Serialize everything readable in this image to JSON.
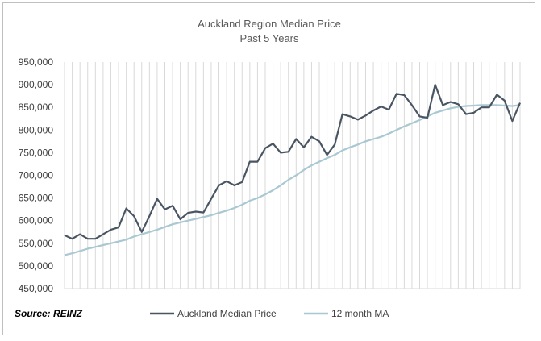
{
  "chart_data": {
    "type": "line",
    "title": "Auckland Region Median Price",
    "subtitle": "Past 5 Years",
    "source": "Source: REINZ",
    "ylim": [
      450000,
      950000
    ],
    "y_ticks": [
      "450,000",
      "500,000",
      "550,000",
      "600,000",
      "650,000",
      "700,000",
      "750,000",
      "800,000",
      "850,000",
      "900,000",
      "950,000"
    ],
    "grid": "vertical lines at each month",
    "legend_position": "bottom",
    "colors": {
      "median": "#4a5563",
      "ma": "#a9c8d2",
      "grid": "#d9d9d9"
    },
    "series": [
      {
        "name": "Auckland Median Price",
        "values": [
          568000,
          560000,
          570000,
          560000,
          560000,
          570000,
          580000,
          585000,
          627000,
          610000,
          575000,
          610000,
          648000,
          625000,
          633000,
          603000,
          617000,
          620000,
          618000,
          648000,
          678000,
          687000,
          678000,
          685000,
          730000,
          730000,
          760000,
          770000,
          750000,
          752000,
          780000,
          762000,
          785000,
          775000,
          745000,
          768000,
          835000,
          830000,
          823000,
          832000,
          843000,
          852000,
          845000,
          880000,
          877000,
          855000,
          830000,
          827000,
          900000,
          855000,
          862000,
          857000,
          835000,
          838000,
          850000,
          850000,
          878000,
          865000,
          820000,
          860000
        ]
      },
      {
        "name": "12 month MA",
        "values": [
          524000,
          528000,
          533000,
          538000,
          542000,
          546000,
          550000,
          554000,
          558000,
          565000,
          570000,
          575000,
          580000,
          586000,
          592000,
          596000,
          600000,
          604000,
          608000,
          612000,
          617000,
          622000,
          628000,
          635000,
          644000,
          650000,
          658000,
          667000,
          678000,
          690000,
          700000,
          712000,
          722000,
          730000,
          738000,
          745000,
          755000,
          762000,
          768000,
          775000,
          780000,
          785000,
          792000,
          800000,
          808000,
          815000,
          822000,
          830000,
          838000,
          843000,
          848000,
          851000,
          853000,
          854000,
          855000,
          855000,
          855000,
          854000,
          853000,
          855000
        ]
      }
    ]
  }
}
